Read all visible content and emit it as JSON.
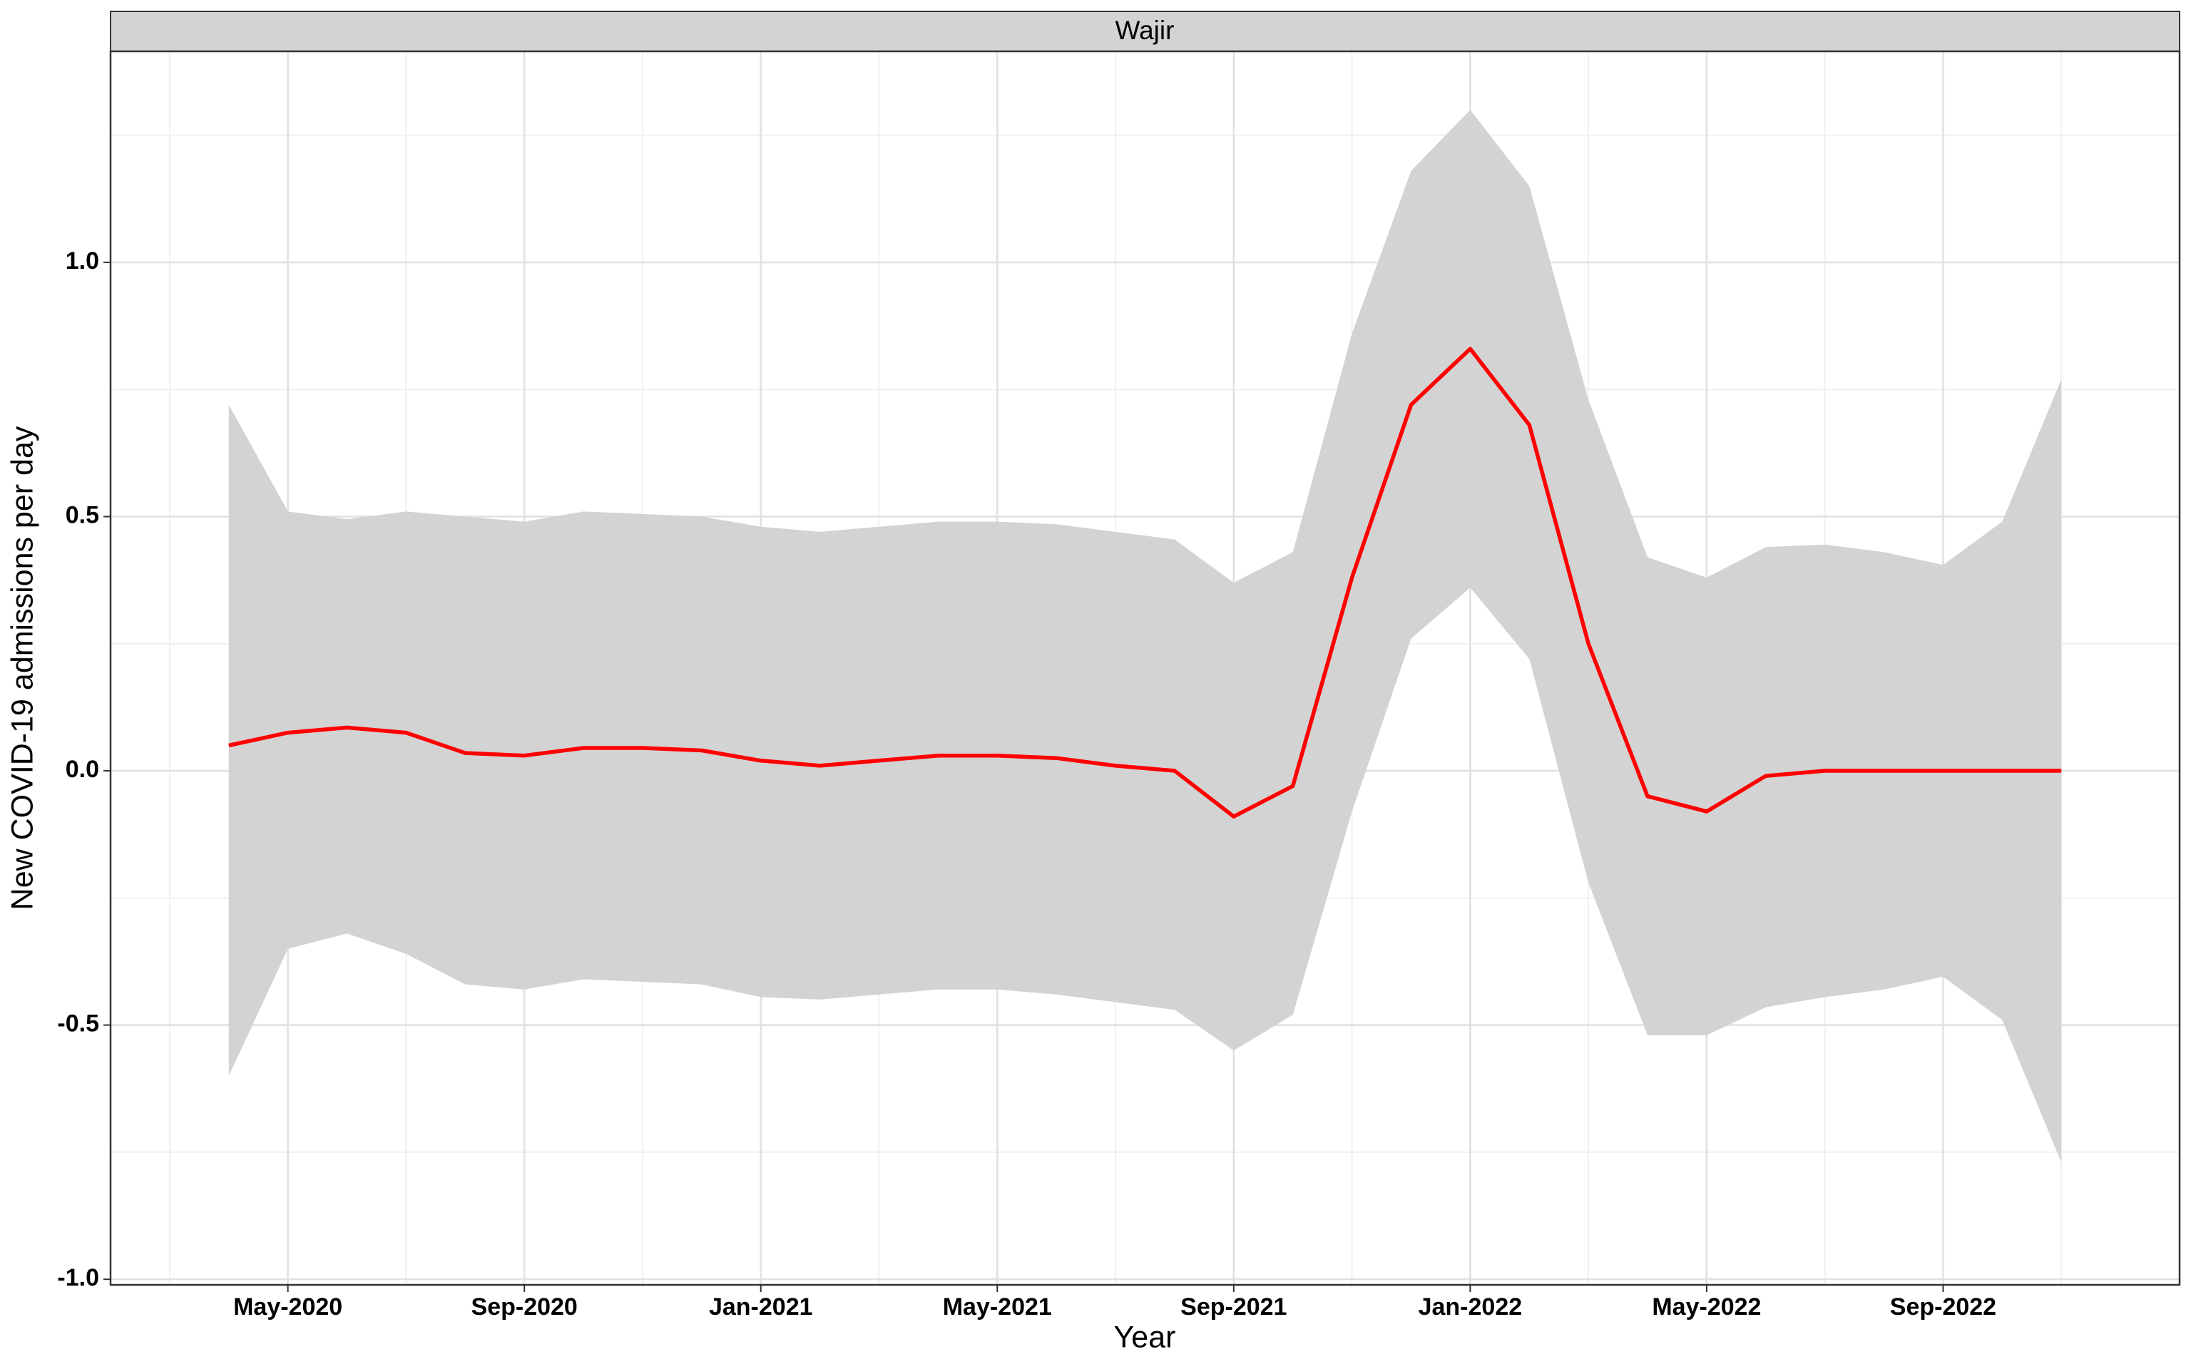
{
  "chart_data": {
    "type": "line",
    "title": "Wajir",
    "xlabel": "Year",
    "ylabel": "New COVID-19 admissions per day",
    "x": [
      "2020-04",
      "2020-05",
      "2020-06",
      "2020-07",
      "2020-08",
      "2020-09",
      "2020-10",
      "2020-11",
      "2020-12",
      "2021-01",
      "2021-02",
      "2021-03",
      "2021-04",
      "2021-05",
      "2021-06",
      "2021-07",
      "2021-08",
      "2021-09",
      "2021-10",
      "2021-11",
      "2021-12",
      "2022-01",
      "2022-02",
      "2022-03",
      "2022-04",
      "2022-05",
      "2022-06",
      "2022-07",
      "2022-08",
      "2022-09",
      "2022-10",
      "2022-11"
    ],
    "values": [
      0.05,
      0.075,
      0.085,
      0.075,
      0.035,
      0.03,
      0.045,
      0.045,
      0.04,
      0.02,
      0.01,
      0.02,
      0.03,
      0.03,
      0.025,
      0.01,
      0.0,
      -0.09,
      -0.03,
      0.38,
      0.72,
      0.83,
      0.68,
      0.25,
      -0.05,
      -0.08,
      -0.01,
      0.0,
      0.0,
      0.0,
      0.0,
      0.0
    ],
    "upper": [
      0.72,
      0.51,
      0.495,
      0.51,
      0.5,
      0.49,
      0.51,
      0.505,
      0.5,
      0.48,
      0.47,
      0.48,
      0.49,
      0.49,
      0.485,
      0.47,
      0.455,
      0.37,
      0.43,
      0.86,
      1.18,
      1.3,
      1.15,
      0.73,
      0.42,
      0.38,
      0.44,
      0.445,
      0.43,
      0.405,
      0.49,
      0.77
    ],
    "lower": [
      -0.6,
      -0.35,
      -0.32,
      -0.36,
      -0.42,
      -0.43,
      -0.41,
      -0.415,
      -0.42,
      -0.445,
      -0.45,
      -0.44,
      -0.43,
      -0.43,
      -0.44,
      -0.455,
      -0.47,
      -0.55,
      -0.48,
      -0.08,
      0.26,
      0.36,
      0.22,
      -0.22,
      -0.52,
      -0.52,
      -0.465,
      -0.445,
      -0.43,
      -0.405,
      -0.49,
      -0.77
    ],
    "color": "#ff0000",
    "band_color": "#d3d3d3",
    "xlim": [
      "2020-02",
      "2023-01"
    ],
    "xticks": [
      {
        "value": "2020-05",
        "label": "May-2020"
      },
      {
        "value": "2020-09",
        "label": "Sep-2020"
      },
      {
        "value": "2021-01",
        "label": "Jan-2021"
      },
      {
        "value": "2021-05",
        "label": "May-2021"
      },
      {
        "value": "2021-09",
        "label": "Sep-2021"
      },
      {
        "value": "2022-01",
        "label": "Jan-2022"
      },
      {
        "value": "2022-05",
        "label": "May-2022"
      },
      {
        "value": "2022-09",
        "label": "Sep-2022"
      }
    ],
    "xminorticks": [
      "2020-03",
      "2020-07",
      "2020-11",
      "2021-03",
      "2021-07",
      "2021-11",
      "2022-03",
      "2022-07",
      "2022-11"
    ],
    "ylim": [
      -1.011,
      1.415
    ],
    "yticks": [
      {
        "value": -1,
        "label": "-1.0"
      },
      -0.5,
      {
        "value": 0,
        "label": "0.0"
      },
      0.5,
      {
        "value": 1,
        "label": "1.0"
      }
    ],
    "yminorticks": [
      -0.75,
      -0.25,
      0.25,
      0.75,
      1.25
    ],
    "grid": true
  }
}
